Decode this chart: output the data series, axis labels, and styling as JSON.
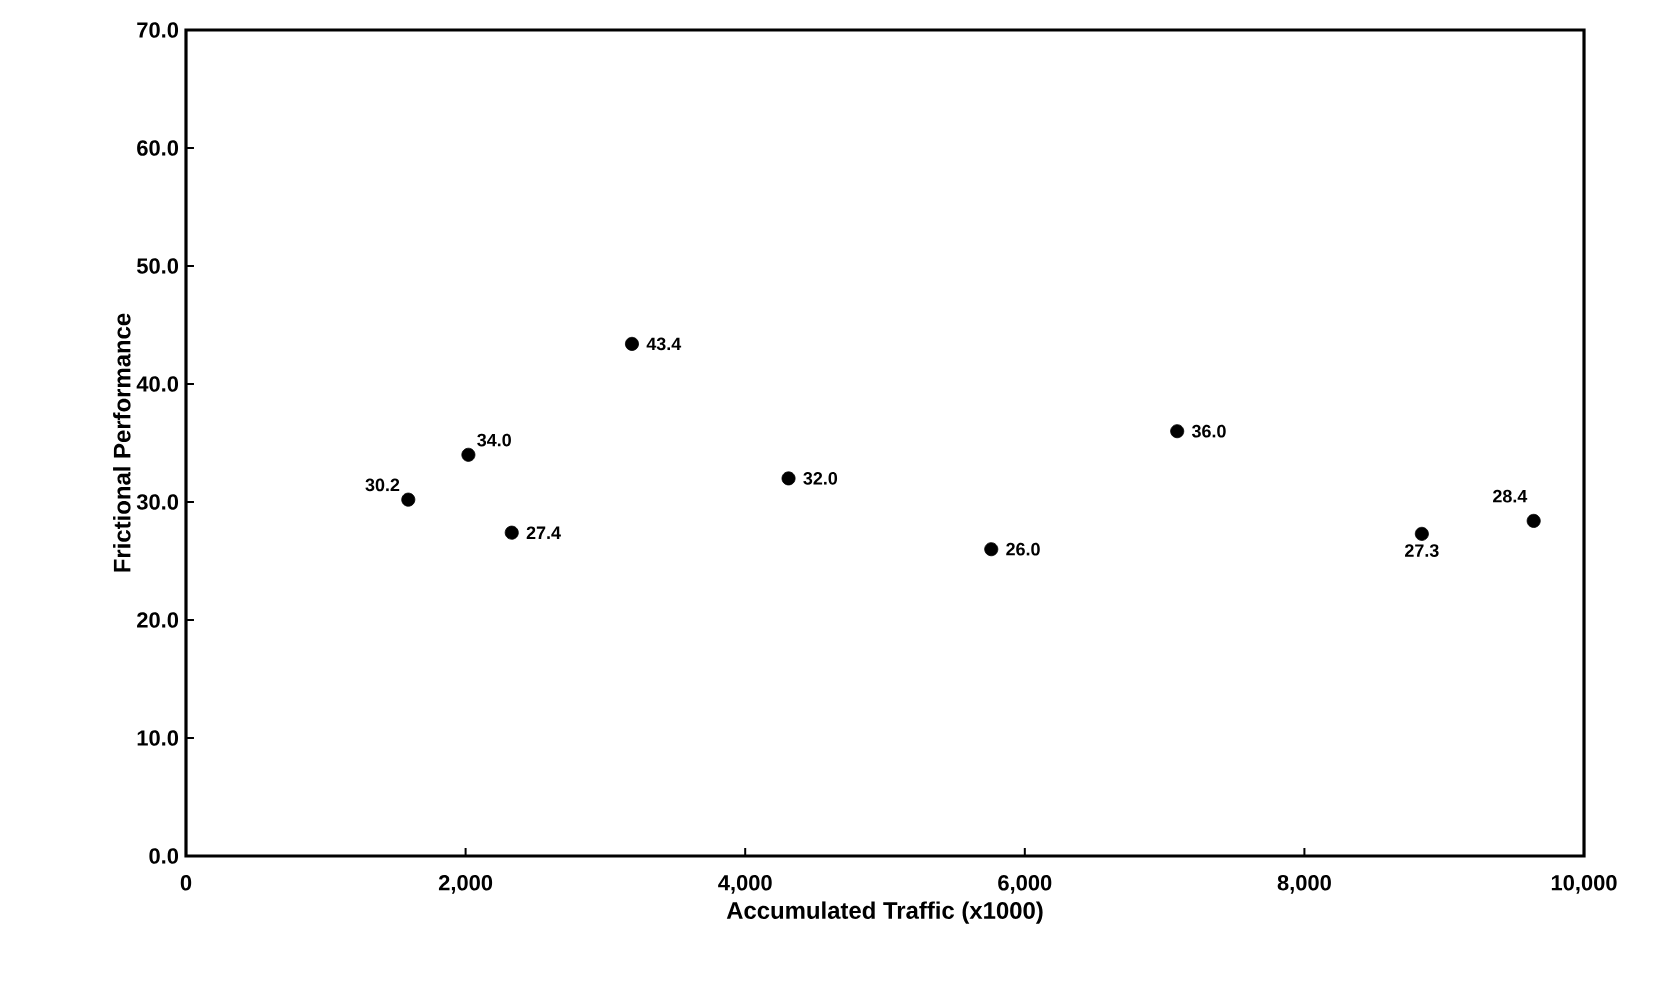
{
  "chart_data": {
    "type": "scatter",
    "xlabel": "Accumulated Traffic (x1000)",
    "ylabel": "Frictional Performance",
    "x": [
      1590,
      2020,
      2330,
      3190,
      4310,
      5760,
      7090,
      8840,
      9640
    ],
    "values": [
      30.2,
      34.0,
      27.4,
      43.4,
      32.0,
      26.0,
      36.0,
      27.3,
      28.4
    ],
    "value_labels": [
      "30.2",
      "34.0",
      "27.4",
      "43.4",
      "32.0",
      "26.0",
      "36.0",
      "27.3",
      "28.4"
    ],
    "color": "#000000",
    "xlim": [
      0,
      10000
    ],
    "ylim": [
      0,
      70
    ],
    "xticks": [
      0,
      {
        "value": 2000,
        "label": "2,000"
      },
      {
        "value": 4000,
        "label": "4,000"
      },
      {
        "value": 6000,
        "label": "6,000"
      },
      {
        "value": 8000,
        "label": "8,000"
      },
      {
        "value": 10000,
        "label": "10,000"
      }
    ],
    "yticks": [
      {
        "value": 0,
        "label": "0.0"
      },
      {
        "value": 10,
        "label": "10.0"
      },
      {
        "value": 20,
        "label": "20.0"
      },
      {
        "value": 30,
        "label": "30.0"
      },
      {
        "value": 40,
        "label": "40.0"
      },
      {
        "value": 50,
        "label": "50.0"
      },
      {
        "value": 60,
        "label": "60.0"
      },
      {
        "value": 70,
        "label": "70.0"
      }
    ]
  }
}
